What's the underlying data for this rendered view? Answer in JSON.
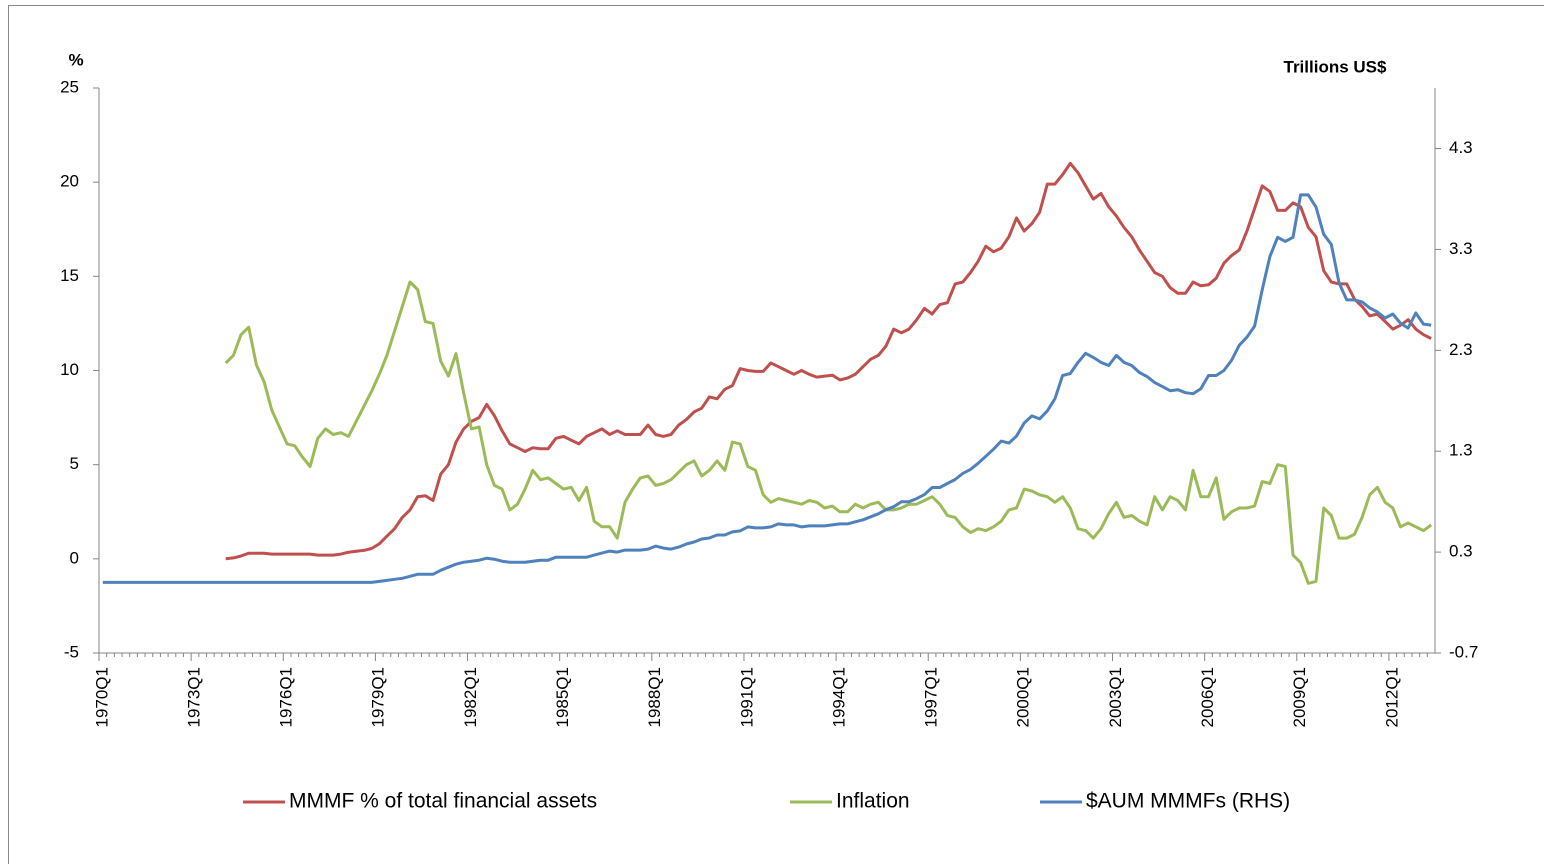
{
  "chart_data": {
    "type": "line",
    "y_label": "%",
    "y2_label": "Trillions US$",
    "categories": [
      "1970Q1",
      null,
      null,
      null,
      null,
      null,
      null,
      null,
      null,
      null,
      null,
      null,
      "1973Q1",
      null,
      null,
      null,
      null,
      null,
      null,
      null,
      null,
      null,
      null,
      null,
      "1976Q1",
      null,
      null,
      null,
      null,
      null,
      null,
      null,
      null,
      null,
      null,
      null,
      "1979Q1",
      null,
      null,
      null,
      null,
      null,
      null,
      null,
      null,
      null,
      null,
      null,
      "1982Q1",
      null,
      null,
      null,
      null,
      null,
      null,
      null,
      null,
      null,
      null,
      null,
      "1985Q1",
      null,
      null,
      null,
      null,
      null,
      null,
      null,
      null,
      null,
      null,
      null,
      "1988Q1",
      null,
      null,
      null,
      null,
      null,
      null,
      null,
      null,
      null,
      null,
      null,
      "1991Q1",
      null,
      null,
      null,
      null,
      null,
      null,
      null,
      null,
      null,
      null,
      null,
      "1994Q1",
      null,
      null,
      null,
      null,
      null,
      null,
      null,
      null,
      null,
      null,
      null,
      "1997Q1",
      null,
      null,
      null,
      null,
      null,
      null,
      null,
      null,
      null,
      null,
      null,
      "2000Q1",
      null,
      null,
      null,
      null,
      null,
      null,
      null,
      null,
      null,
      null,
      null,
      "2003Q1",
      null,
      null,
      null,
      null,
      null,
      null,
      null,
      null,
      null,
      null,
      null,
      "2006Q1",
      null,
      null,
      null,
      null,
      null,
      null,
      null,
      null,
      null,
      null,
      null,
      "2009Q1",
      null,
      null,
      null,
      null,
      null,
      null,
      null,
      null,
      null,
      null,
      null,
      "2012Q1",
      null,
      null,
      null,
      null,
      null
    ],
    "series": [
      {
        "name": "MMMF % of total financial assets",
        "color": "#c0504d",
        "axis": "y",
        "values": [
          null,
          null,
          null,
          null,
          null,
          null,
          null,
          null,
          null,
          null,
          null,
          null,
          null,
          null,
          null,
          null,
          0,
          0.05,
          0.15,
          0.3,
          0.3,
          0.3,
          0.25,
          0.25,
          0.25,
          0.25,
          0.25,
          0.25,
          0.2,
          0.2,
          0.2,
          0.25,
          0.35,
          0.4,
          0.45,
          0.55,
          0.8,
          1.2,
          1.6,
          2.2,
          2.6,
          3.3,
          3.35,
          3.1,
          4.5,
          5.0,
          6.2,
          6.9,
          7.3,
          7.5,
          8.2,
          7.6,
          6.8,
          6.1,
          5.9,
          5.7,
          5.9,
          5.85,
          5.85,
          6.4,
          6.5,
          6.3,
          6.1,
          6.5,
          6.7,
          6.9,
          6.6,
          6.8,
          6.6,
          6.6,
          6.6,
          7.1,
          6.6,
          6.5,
          6.6,
          7.1,
          7.4,
          7.8,
          8.0,
          8.6,
          8.5,
          9.0,
          9.2,
          10.1,
          10.0,
          9.95,
          9.95,
          10.4,
          10.2,
          10.0,
          9.8,
          10.0,
          9.8,
          9.65,
          9.7,
          9.75,
          9.5,
          9.6,
          9.8,
          10.2,
          10.6,
          10.8,
          11.3,
          12.2,
          12.0,
          12.2,
          12.7,
          13.3,
          13.0,
          13.5,
          13.6,
          14.6,
          14.7,
          15.2,
          15.8,
          16.6,
          16.3,
          16.5,
          17.1,
          18.1,
          17.4,
          17.8,
          18.4,
          19.9,
          19.9,
          20.4,
          21.0,
          20.5,
          19.8,
          19.1,
          19.4,
          18.7,
          18.2,
          17.6,
          17.1,
          16.4,
          15.8,
          15.2,
          15.0,
          14.4,
          14.1,
          14.1,
          14.7,
          14.5,
          14.55,
          14.9,
          15.7,
          16.1,
          16.4,
          17.4,
          18.6,
          19.8,
          19.5,
          18.5,
          18.5,
          18.9,
          18.7,
          17.6,
          17.1,
          15.3,
          14.7,
          14.6,
          14.6,
          13.8,
          13.4,
          12.9,
          13.0,
          12.6,
          12.2,
          12.4,
          12.7,
          12.2,
          11.9,
          11.7
        ]
      },
      {
        "name": "Inflation",
        "color": "#9bbb59",
        "axis": "y",
        "values": [
          null,
          null,
          null,
          null,
          null,
          null,
          null,
          null,
          null,
          null,
          null,
          null,
          null,
          null,
          null,
          null,
          10.4,
          10.8,
          11.9,
          12.3,
          10.3,
          9.4,
          7.9,
          7.0,
          6.1,
          6.0,
          5.4,
          4.9,
          6.4,
          6.9,
          6.6,
          6.7,
          6.5,
          7.3,
          8.1,
          8.9,
          9.8,
          10.8,
          12.1,
          13.4,
          14.7,
          14.3,
          12.6,
          12.5,
          10.5,
          9.7,
          10.9,
          8.8,
          6.9,
          7.0,
          5.0,
          3.9,
          3.7,
          2.6,
          2.9,
          3.7,
          4.7,
          4.2,
          4.3,
          4.0,
          3.7,
          3.8,
          3.1,
          3.8,
          2.0,
          1.7,
          1.7,
          1.1,
          3.0,
          3.7,
          4.3,
          4.4,
          3.9,
          4.0,
          4.2,
          4.6,
          5.0,
          5.2,
          4.4,
          4.7,
          5.2,
          4.7,
          6.2,
          6.1,
          4.9,
          4.7,
          3.4,
          3.0,
          3.2,
          3.1,
          3.0,
          2.9,
          3.1,
          3.0,
          2.7,
          2.8,
          2.5,
          2.5,
          2.9,
          2.7,
          2.9,
          3.0,
          2.6,
          2.6,
          2.7,
          2.9,
          2.9,
          3.1,
          3.3,
          2.9,
          2.3,
          2.2,
          1.7,
          1.4,
          1.6,
          1.5,
          1.7,
          2.0,
          2.6,
          2.7,
          3.7,
          3.6,
          3.4,
          3.3,
          3.0,
          3.3,
          2.7,
          1.6,
          1.5,
          1.1,
          1.6,
          2.4,
          3.0,
          2.2,
          2.3,
          2.0,
          1.8,
          3.3,
          2.6,
          3.3,
          3.1,
          2.6,
          4.7,
          3.3,
          3.3,
          4.3,
          2.1,
          2.5,
          2.7,
          2.7,
          2.8,
          4.1,
          4.0,
          5.0,
          4.9,
          0.2,
          -0.2,
          -1.3,
          -1.2,
          2.7,
          2.3,
          1.1,
          1.1,
          1.3,
          2.2,
          3.4,
          3.8,
          3.0,
          2.7,
          1.7,
          1.9,
          1.7,
          1.5,
          1.8
        ]
      },
      {
        "name": "$AUM MMMFs (RHS)",
        "color": "#4f81bd",
        "axis": "y2",
        "values": [
          0,
          0,
          0,
          0,
          0,
          0,
          0,
          0,
          0,
          0,
          0,
          0,
          0,
          0,
          0,
          0,
          0,
          0,
          0,
          0,
          0,
          0,
          0,
          0,
          0,
          0,
          0,
          0,
          0,
          0,
          0,
          0,
          0,
          0,
          0,
          0,
          0.01,
          0.02,
          0.03,
          0.04,
          0.06,
          0.08,
          0.08,
          0.08,
          0.12,
          0.15,
          0.18,
          0.2,
          0.21,
          0.22,
          0.24,
          0.23,
          0.21,
          0.2,
          0.2,
          0.2,
          0.21,
          0.22,
          0.22,
          0.25,
          0.25,
          0.25,
          0.25,
          0.25,
          0.27,
          0.29,
          0.31,
          0.3,
          0.32,
          0.32,
          0.32,
          0.33,
          0.36,
          0.34,
          0.33,
          0.35,
          0.38,
          0.4,
          0.43,
          0.44,
          0.47,
          0.47,
          0.5,
          0.51,
          0.55,
          0.54,
          0.54,
          0.55,
          0.58,
          0.57,
          0.57,
          0.55,
          0.56,
          0.56,
          0.56,
          0.57,
          0.58,
          0.58,
          0.6,
          0.62,
          0.65,
          0.68,
          0.72,
          0.75,
          0.8,
          0.8,
          0.83,
          0.87,
          0.94,
          0.94,
          0.98,
          1.02,
          1.08,
          1.12,
          1.18,
          1.25,
          1.32,
          1.4,
          1.38,
          1.45,
          1.58,
          1.65,
          1.62,
          1.7,
          1.82,
          2.05,
          2.07,
          2.18,
          2.27,
          2.23,
          2.18,
          2.15,
          2.25,
          2.18,
          2.15,
          2.08,
          2.04,
          1.98,
          1.94,
          1.9,
          1.91,
          1.88,
          1.87,
          1.92,
          2.05,
          2.05,
          2.1,
          2.2,
          2.35,
          2.43,
          2.54,
          2.9,
          3.23,
          3.42,
          3.38,
          3.42,
          3.84,
          3.84,
          3.72,
          3.45,
          3.35,
          2.97,
          2.8,
          2.8,
          2.78,
          2.72,
          2.68,
          2.62,
          2.66,
          2.57,
          2.52,
          2.67,
          2.56,
          2.55
        ]
      }
    ],
    "ylim": [
      -5,
      25
    ],
    "yticks": [
      -5,
      0,
      5,
      10,
      15,
      20,
      25
    ],
    "y2lim": [
      -0.7,
      4.9
    ],
    "y2ticks": [
      -0.7,
      0.3,
      1.3,
      2.3,
      3.3,
      4.3
    ],
    "grid": false,
    "legend": "bottom"
  }
}
